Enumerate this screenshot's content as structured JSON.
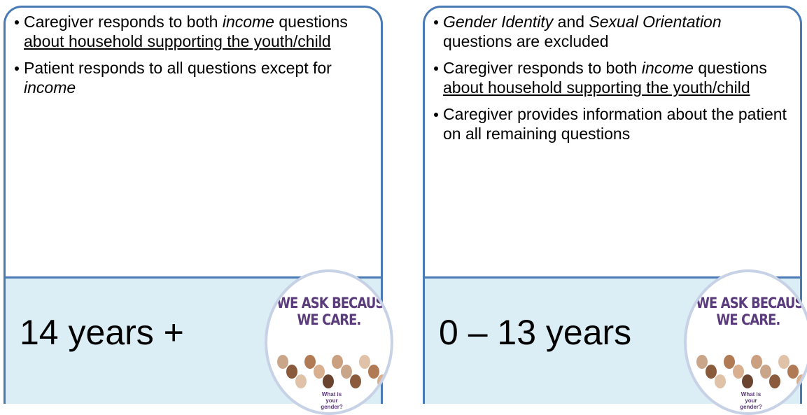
{
  "cards": [
    {
      "bullets": [
        [
          {
            "text": "Caregiver responds to both "
          },
          {
            "text": "income",
            "style": "italic"
          },
          {
            "text": " questions "
          },
          {
            "text": "about household supporting the youth/child",
            "style": "underline"
          }
        ],
        [
          {
            "text": "Patient responds to all questions except for "
          },
          {
            "text": "income",
            "style": "italic"
          }
        ]
      ],
      "age": "14 years +",
      "badge": {
        "headline": "WE ASK BECAUSE",
        "subheadline": "WE CARE.",
        "question": "What is your gender?"
      }
    },
    {
      "bullets": [
        [
          {
            "text": "Gender Identity",
            "style": "italic"
          },
          {
            "text": " and "
          },
          {
            "text": "Sexual Orientation",
            "style": "italic"
          },
          {
            "text": " questions are excluded"
          }
        ],
        [
          {
            "text": "Caregiver responds to both "
          },
          {
            "text": "income",
            "style": "italic"
          },
          {
            "text": " questions "
          },
          {
            "text": "about household supporting the youth/child",
            "style": "underline"
          }
        ],
        [
          {
            "text": "Caregiver provides information about the patient on all remaining questions"
          }
        ]
      ],
      "age": "0 – 13 years",
      "badge": {
        "headline": "WE ASK BECAUSE",
        "subheadline": "WE CARE.",
        "question": "What is your gender?"
      }
    }
  ]
}
